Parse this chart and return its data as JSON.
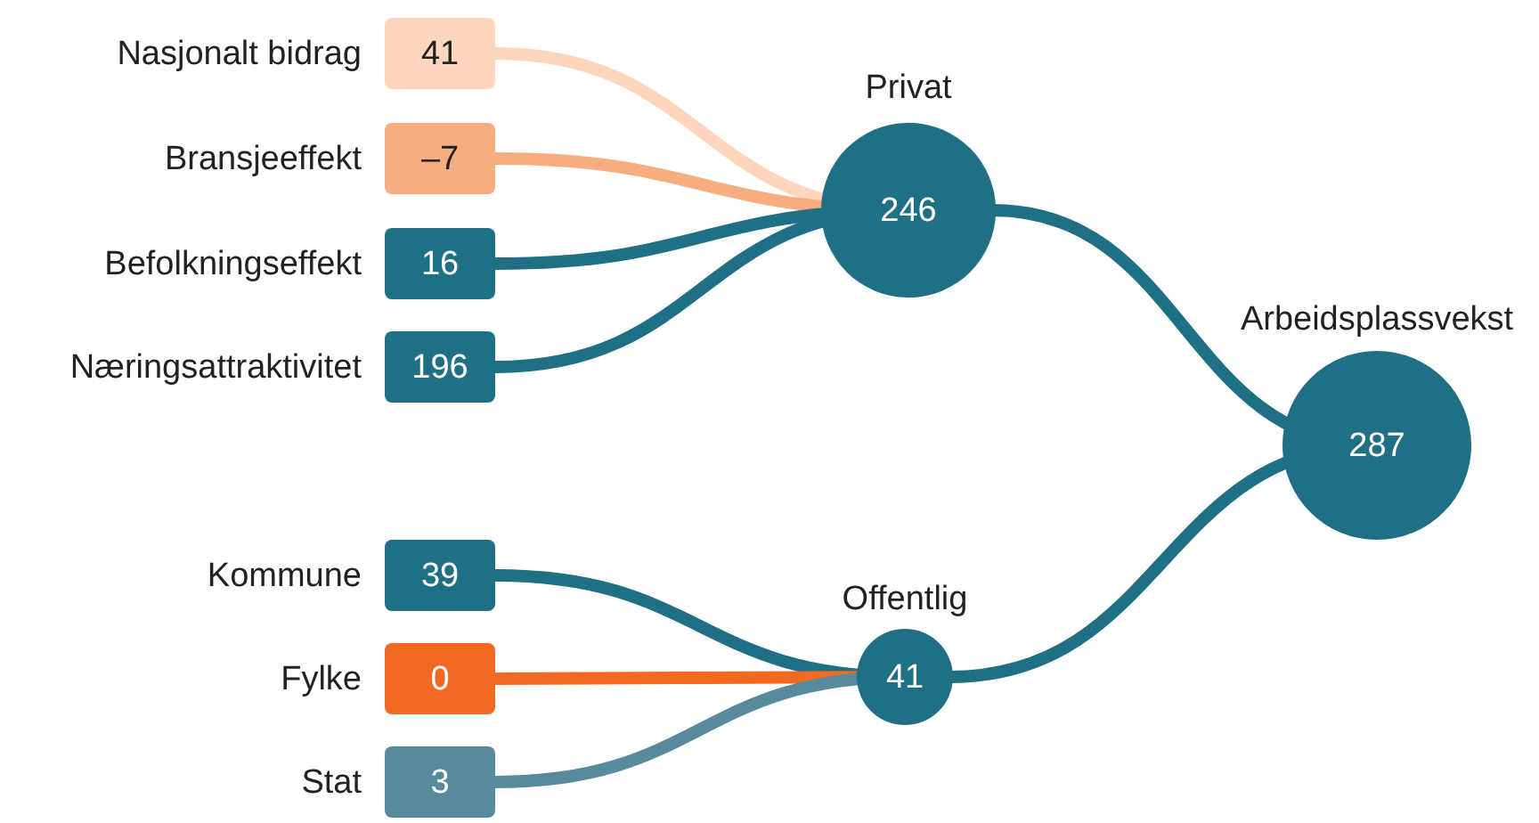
{
  "chart_data": {
    "type": "other",
    "categories": [
      "Nasjonalt bidrag",
      "Bransjeeffekt",
      "Befolkningseffekt",
      "Næringsattraktivitet",
      "Kommune",
      "Fylke",
      "Stat",
      "Privat",
      "Offentlig",
      "Arbeidsplassvekst"
    ],
    "values": [
      41,
      -7,
      16,
      196,
      39,
      0,
      3,
      246,
      41,
      287
    ],
    "value_labels": [
      "41",
      "–7",
      "16",
      "196",
      "39",
      "0",
      "3",
      "246",
      "41",
      "287"
    ],
    "colors": [
      "#fdd6bb",
      "#f7ad80",
      "#1f6f85",
      "#1f6f85",
      "#1f6f85",
      "#f26a21",
      "#578a9b",
      "#1f6f85",
      "#1f6f85",
      "#1f6f85"
    ]
  }
}
